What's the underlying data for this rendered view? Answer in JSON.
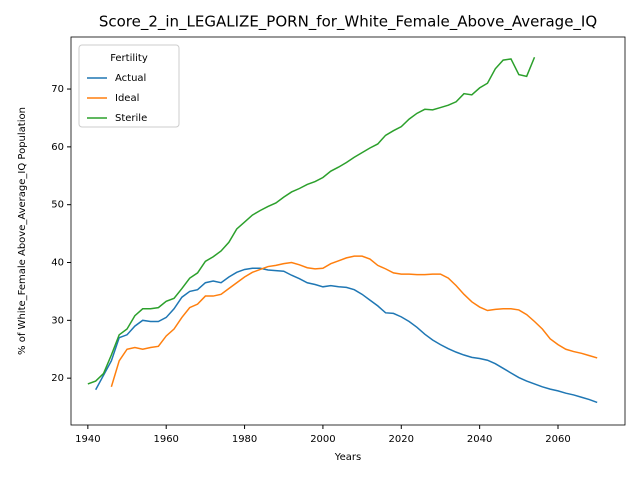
{
  "chart_data": {
    "type": "line",
    "title": "Score_2_in_LEGALIZE_PORN_for_White_Female_Above_Average_IQ",
    "xlabel": "Years",
    "ylabel": "% of White_Female Above_Average_IQ Population",
    "legend_title": "Fertility",
    "legend": "upper left",
    "x": [
      1940,
      1942,
      1944,
      1946,
      1948,
      1950,
      1952,
      1954,
      1956,
      1958,
      1960,
      1962,
      1964,
      1966,
      1968,
      1970,
      1972,
      1974,
      1976,
      1978,
      1980,
      1982,
      1984,
      1986,
      1988,
      1990,
      1992,
      1994,
      1996,
      1998,
      2000,
      2002,
      2004,
      2006,
      2008,
      2010,
      2012,
      2014,
      2016,
      2018,
      2020,
      2022,
      2024,
      2026,
      2028,
      2030,
      2032,
      2034,
      2036,
      2038,
      2040,
      2042,
      2044,
      2046,
      2048,
      2050,
      2052,
      2054,
      2056,
      2058,
      2060,
      2062,
      2064,
      2066,
      2068,
      2070
    ],
    "series": [
      {
        "name": "Actual",
        "color": "#1f77b4",
        "values": [
          null,
          18,
          20.5,
          23,
          27,
          27.5,
          29,
          30,
          29.8,
          29.8,
          30.5,
          32,
          34,
          35,
          35.3,
          36.5,
          36.8,
          36.5,
          37.5,
          38.3,
          38.8,
          39,
          39,
          38.7,
          38.6,
          38.5,
          37.8,
          37.2,
          36.5,
          36.2,
          35.8,
          36,
          35.8,
          35.7,
          35.3,
          34.5,
          33.5,
          32.5,
          31.3,
          31.2,
          30.6,
          29.8,
          28.8,
          27.6,
          26.6,
          25.8,
          25.1,
          24.5,
          24,
          23.6,
          23.4,
          23.1,
          22.5,
          21.7,
          20.9,
          20.1,
          19.5,
          19,
          18.5,
          18.1,
          17.8,
          17.4,
          17.1,
          16.7,
          16.3,
          15.8
        ]
      },
      {
        "name": "Ideal",
        "color": "#ff7f0e",
        "values": [
          null,
          null,
          null,
          18.5,
          23,
          25,
          25.3,
          25,
          25.3,
          25.5,
          27.3,
          28.5,
          30.5,
          32.2,
          32.8,
          34.2,
          34.2,
          34.5,
          35.5,
          36.5,
          37.5,
          38.3,
          38.8,
          39.3,
          39.5,
          39.8,
          40,
          39.6,
          39.1,
          38.9,
          39,
          39.8,
          40.3,
          40.8,
          41.1,
          41.1,
          40.6,
          39.5,
          38.9,
          38.2,
          38,
          38,
          37.9,
          37.9,
          38,
          38,
          37.3,
          36,
          34.5,
          33.2,
          32.3,
          31.7,
          31.9,
          32,
          32,
          31.8,
          31,
          29.8,
          28.5,
          26.8,
          25.8,
          25,
          24.6,
          24.3,
          23.9,
          23.5
        ]
      },
      {
        "name": "Sterile",
        "color": "#2ca02c",
        "values": [
          19,
          19.5,
          20.8,
          24,
          27.5,
          28.5,
          30.8,
          32,
          32,
          32.2,
          33.3,
          33.8,
          35.5,
          37.3,
          38.2,
          40.2,
          41,
          42,
          43.5,
          45.8,
          47,
          48.2,
          49,
          49.7,
          50.3,
          51.3,
          52.2,
          52.8,
          53.5,
          54,
          54.7,
          55.8,
          56.5,
          57.3,
          58.2,
          59,
          59.8,
          60.5,
          62,
          62.8,
          63.5,
          64.8,
          65.8,
          66.5,
          66.4,
          66.8,
          67.2,
          67.8,
          69.2,
          69,
          70.2,
          71,
          73.5,
          75,
          75.2,
          72.5,
          72.2,
          75.5,
          null,
          null,
          null,
          null,
          null,
          null,
          null,
          null
        ]
      }
    ],
    "xlim": [
      1935.7,
      2077.1
    ],
    "ylim": [
      11.9,
      79.0
    ],
    "xticks": [
      1940,
      1960,
      1980,
      2000,
      2020,
      2040,
      2060
    ],
    "yticks": [
      20,
      30,
      40,
      50,
      60,
      70
    ]
  }
}
